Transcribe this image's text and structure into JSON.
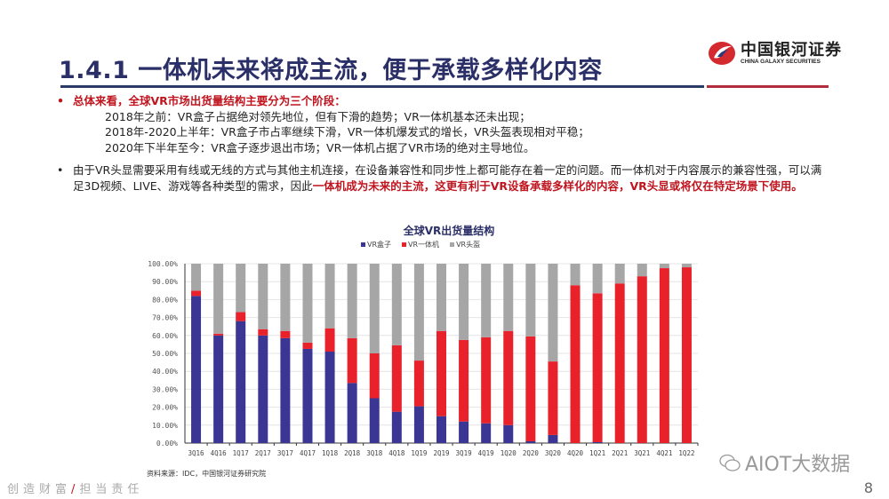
{
  "header": {
    "title": "1.4.1 一体机未来将成主流，便于承载多样化内容",
    "logo_cn": "中国银河证券",
    "logo_en": "CHINA GALAXY SECURITIES",
    "accent_blue": "#2b2f67",
    "accent_red": "#c0141e"
  },
  "bullets": [
    {
      "lead": "总体来看，全球VR市场出货量结构主要分为三个阶段：",
      "lines": [
        "2018年之前：VR盒子占据绝对领先地位，但有下滑的趋势；VR一体机基本还未出现；",
        "2018年-2020上半年：VR盒子市占率继续下滑，VR一体机爆发式的增长，VR头盔表现相对平稳；",
        "2020年下半年至今：VR盒子逐步退出市场；VR一体机占据了VR市场的绝对主导地位。"
      ]
    },
    {
      "text": "由于VR头显需要采用有线或无线的方式与其他主机连接，在设备兼容性和同步性上都可能存在着一定的问题。而一体机对于内容展示的兼容性强，可以满足3D视频、LIVE、游戏等各种类型的需求，因此",
      "highlight": "一体机成为未来的主流，这更有利于VR设备承载多样化的内容，VR头显或将仅在特定场景下使用。"
    }
  ],
  "chart_data": {
    "type": "bar",
    "stacked": true,
    "title": "全球VR出货量结构",
    "categories": [
      "3Q16",
      "4Q16",
      "1Q17",
      "2Q17",
      "3Q17",
      "4Q17",
      "1Q18",
      "2Q18",
      "3Q18",
      "4Q18",
      "1Q19",
      "2Q19",
      "3Q19",
      "4Q19",
      "1Q20",
      "2Q20",
      "3Q20",
      "4Q20",
      "1Q21",
      "2Q21",
      "3Q21",
      "4Q21",
      "1Q22"
    ],
    "series": [
      {
        "name": "VR盒子",
        "color": "#3b3594",
        "values": [
          82,
          60,
          68,
          60,
          58.5,
          52.5,
          51,
          33.5,
          25,
          17.5,
          20.5,
          15,
          12,
          11,
          10,
          1,
          4.5,
          0,
          0.5,
          0,
          0,
          0,
          0
        ]
      },
      {
        "name": "VR一体机",
        "color": "#e8212b",
        "values": [
          3,
          1,
          5,
          3.5,
          4,
          3.5,
          13,
          25,
          25,
          37,
          25.5,
          47.5,
          45.5,
          48,
          52.5,
          58.5,
          41,
          88,
          83,
          89,
          93,
          97.5,
          98
        ]
      },
      {
        "name": "VR头盔",
        "color": "#a6a6a6",
        "values": [
          15,
          39,
          27,
          36.5,
          37.5,
          44,
          36,
          41.5,
          50,
          45.5,
          54,
          37.5,
          42.5,
          41,
          37.5,
          40.5,
          54.5,
          12,
          16.5,
          11,
          7,
          2.5,
          2
        ]
      }
    ],
    "yticks": [
      "0.00%",
      "10.00%",
      "20.00%",
      "30.00%",
      "40.00%",
      "50.00%",
      "60.00%",
      "70.00%",
      "80.00%",
      "90.00%",
      "100.00%"
    ],
    "ylim": [
      0,
      100
    ],
    "grid": true,
    "legend": "top"
  },
  "source": "资料来源：IDC，中国银河证券研究院",
  "footer": {
    "slogan_a": "创造财富",
    "slash": "/",
    "slogan_b": "担当责任",
    "page": "8"
  },
  "watermark": "AIOT大数据"
}
